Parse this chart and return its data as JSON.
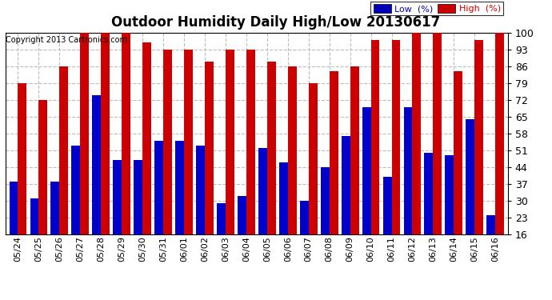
{
  "title": "Outdoor Humidity Daily High/Low 20130617",
  "copyright": "Copyright 2013 Cartronics.com",
  "ylim": [
    16,
    100
  ],
  "yticks": [
    16,
    23,
    30,
    37,
    44,
    51,
    58,
    65,
    72,
    79,
    86,
    93,
    100
  ],
  "legend_labels": [
    "Low  (%)",
    "High  (%)"
  ],
  "legend_colors": [
    "#0000bb",
    "#cc0000"
  ],
  "bar_color_low": "#0000cc",
  "bar_color_high": "#cc0000",
  "background_color": "#ffffff",
  "grid_color": "#bbbbbb",
  "dates": [
    "05/24",
    "05/25",
    "05/26",
    "05/27",
    "05/28",
    "05/29",
    "05/30",
    "05/31",
    "06/01",
    "06/02",
    "06/03",
    "06/04",
    "06/05",
    "06/06",
    "06/07",
    "06/08",
    "06/09",
    "06/10",
    "06/11",
    "06/12",
    "06/13",
    "06/14",
    "06/15",
    "06/16"
  ],
  "high": [
    79,
    72,
    86,
    100,
    100,
    100,
    96,
    93,
    93,
    88,
    93,
    93,
    88,
    86,
    79,
    84,
    86,
    97,
    97,
    100,
    100,
    84,
    97,
    100
  ],
  "low": [
    38,
    31,
    38,
    53,
    74,
    47,
    47,
    55,
    55,
    53,
    29,
    32,
    52,
    46,
    30,
    44,
    57,
    69,
    40,
    69,
    50,
    49,
    64,
    24
  ]
}
